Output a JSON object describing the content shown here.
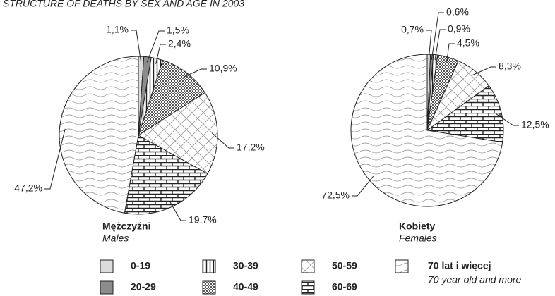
{
  "title": "STRUCTURE OF DEATHS BY SEX AND AGE IN 2003",
  "legend_note": "70 year old and more",
  "chart_data": [
    {
      "type": "pie",
      "title": "Mężczyźni",
      "subtitle": "Males",
      "categories": [
        "0-19",
        "20-29",
        "30-39",
        "40-49",
        "50-59",
        "60-69",
        "70 lat i więcej"
      ],
      "values": [
        1.1,
        1.5,
        2.4,
        10.9,
        17.2,
        19.7,
        47.2
      ],
      "value_labels": [
        "1,1%",
        "1,5%",
        "2,4%",
        "10,9%",
        "17,2%",
        "19,7%",
        "47,2%"
      ],
      "patterns": [
        "lightgray",
        "darkgray",
        "vertical",
        "dots",
        "cross",
        "brick",
        "wave"
      ]
    },
    {
      "type": "pie",
      "title": "Kobiety",
      "subtitle": "Females",
      "categories": [
        "0-19",
        "20-29",
        "30-39",
        "40-49",
        "50-59",
        "60-69",
        "70 lat i więcej"
      ],
      "values": [
        0.7,
        0.6,
        0.9,
        4.5,
        8.3,
        12.5,
        72.5
      ],
      "value_labels": [
        "0,7%",
        "0,6%",
        "0,9%",
        "4,5%",
        "8,3%",
        "12,5%",
        "72,5%"
      ],
      "patterns": [
        "lightgray",
        "darkgray",
        "vertical",
        "dots",
        "cross",
        "brick",
        "wave"
      ]
    }
  ]
}
